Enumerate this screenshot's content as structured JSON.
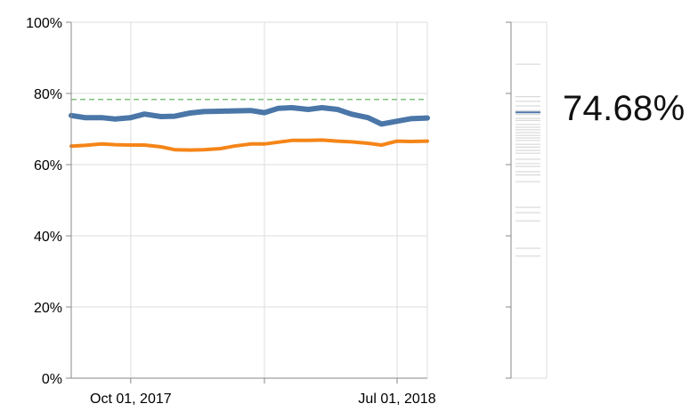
{
  "chart_data": [
    {
      "type": "line",
      "title": "",
      "xlabel": "",
      "ylabel": "",
      "ylim": [
        0,
        100
      ],
      "y_tick_labels": [
        "0%",
        "20%",
        "40%",
        "60%",
        "80%",
        "100%"
      ],
      "y_tick_values": [
        0,
        20,
        40,
        60,
        80,
        100
      ],
      "x_tick_labels": [
        "Oct 01, 2017",
        "Jul 01, 2018"
      ],
      "x_tick_dates": [
        "2017-10-01",
        "2018-07-01"
      ],
      "x_extra_tick_dates": [
        "2018-02-15"
      ],
      "xlim": [
        "2017-08-01",
        "2018-08-01"
      ],
      "grid": true,
      "reference_line": {
        "value": 78.3,
        "color": "#7fbf7b",
        "style": "dashed"
      },
      "series": [
        {
          "color": "#4a76a8",
          "x": [
            "2017-08-01",
            "2017-08-15",
            "2017-09-01",
            "2017-09-15",
            "2017-10-01",
            "2017-10-15",
            "2017-11-01",
            "2017-11-15",
            "2017-12-01",
            "2017-12-15",
            "2018-01-01",
            "2018-01-15",
            "2018-02-01",
            "2018-02-15",
            "2018-03-01",
            "2018-03-15",
            "2018-04-01",
            "2018-04-15",
            "2018-05-01",
            "2018-05-15",
            "2018-06-01",
            "2018-06-15",
            "2018-07-01",
            "2018-07-15",
            "2018-08-01"
          ],
          "values": [
            73.8,
            73.2,
            73.2,
            72.8,
            73.2,
            74.2,
            73.5,
            73.6,
            74.5,
            74.9,
            75.0,
            75.1,
            75.2,
            74.6,
            75.8,
            76.0,
            75.5,
            76.0,
            75.5,
            74.2,
            73.2,
            71.4,
            72.2,
            72.9,
            73.1
          ]
        },
        {
          "color": "#f58518",
          "x": [
            "2017-08-01",
            "2017-08-15",
            "2017-09-01",
            "2017-09-15",
            "2017-10-01",
            "2017-10-15",
            "2017-11-01",
            "2017-11-15",
            "2017-12-01",
            "2017-12-15",
            "2018-01-01",
            "2018-01-15",
            "2018-02-01",
            "2018-02-15",
            "2018-03-01",
            "2018-03-15",
            "2018-04-01",
            "2018-04-15",
            "2018-05-01",
            "2018-05-15",
            "2018-06-01",
            "2018-06-15",
            "2018-07-01",
            "2018-07-15",
            "2018-08-01"
          ],
          "values": [
            65.2,
            65.4,
            65.8,
            65.6,
            65.5,
            65.5,
            65.0,
            64.2,
            64.1,
            64.2,
            64.5,
            65.2,
            65.8,
            65.8,
            66.3,
            66.8,
            66.8,
            66.9,
            66.6,
            66.4,
            66.0,
            65.5,
            66.6,
            66.5,
            66.6
          ]
        }
      ]
    },
    {
      "type": "strip",
      "ylim": [
        0,
        100
      ],
      "highlight_value": 74.68,
      "highlight_color": "#4a76a8",
      "values": [
        88.2,
        79.1,
        77.8,
        76.5,
        75.2,
        74.68,
        74.1,
        73.0,
        72.4,
        71.3,
        70.5,
        69.8,
        69.0,
        68.2,
        67.5,
        66.8,
        65.7,
        64.9,
        64.0,
        63.2,
        61.5,
        60.3,
        59.5,
        58.0,
        57.1,
        55.2,
        48.0,
        46.5,
        44.2,
        36.5,
        34.3
      ]
    }
  ],
  "big_value": "74.68%"
}
